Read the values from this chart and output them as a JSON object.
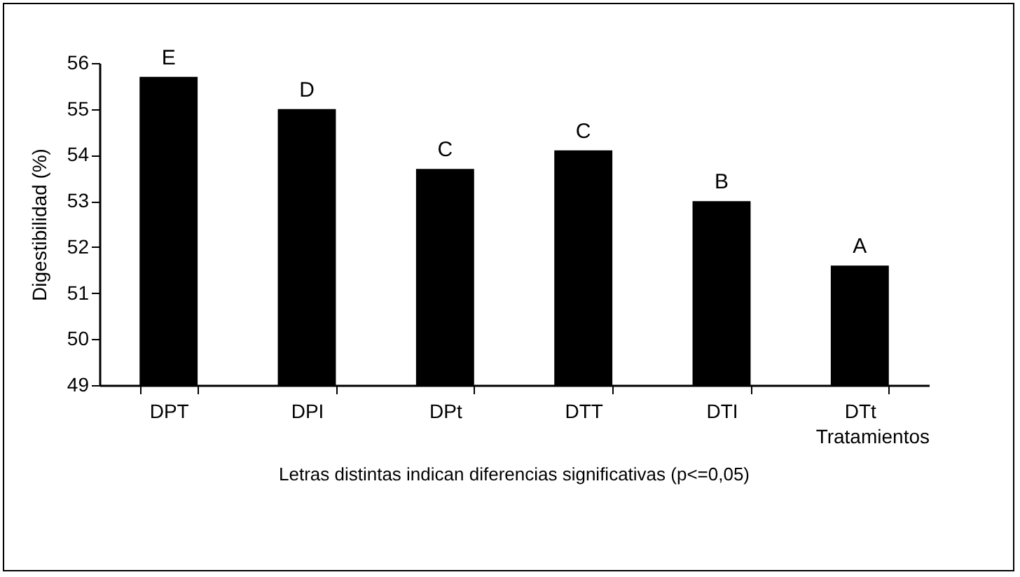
{
  "chart_data": {
    "type": "bar",
    "xlabel": "Tratamientos",
    "ylabel": "Digestibilidad (%)",
    "categories": [
      "DPT",
      "DPI",
      "DPt",
      "DTT",
      "DTI",
      "DTt"
    ],
    "values": [
      55.7,
      55.0,
      53.7,
      54.1,
      53.0,
      51.6
    ],
    "color": "#000000",
    "ylim": [
      49,
      56
    ],
    "yticks": [
      49,
      50,
      51,
      52,
      53,
      54,
      55,
      56
    ],
    "annotations": [
      {
        "text": "E",
        "x": "DPT",
        "y": 55.7
      },
      {
        "text": "D",
        "x": "DPI",
        "y": 55.0
      },
      {
        "text": "C",
        "x": "DPt",
        "y": 53.7
      },
      {
        "text": "C",
        "x": "DTT",
        "y": 54.1
      },
      {
        "text": "B",
        "x": "DTI",
        "y": 53.0
      },
      {
        "text": "A",
        "x": "DTt",
        "y": 51.6
      },
      "Letras distintas indican diferencias significativas (p<=0,05)"
    ]
  }
}
